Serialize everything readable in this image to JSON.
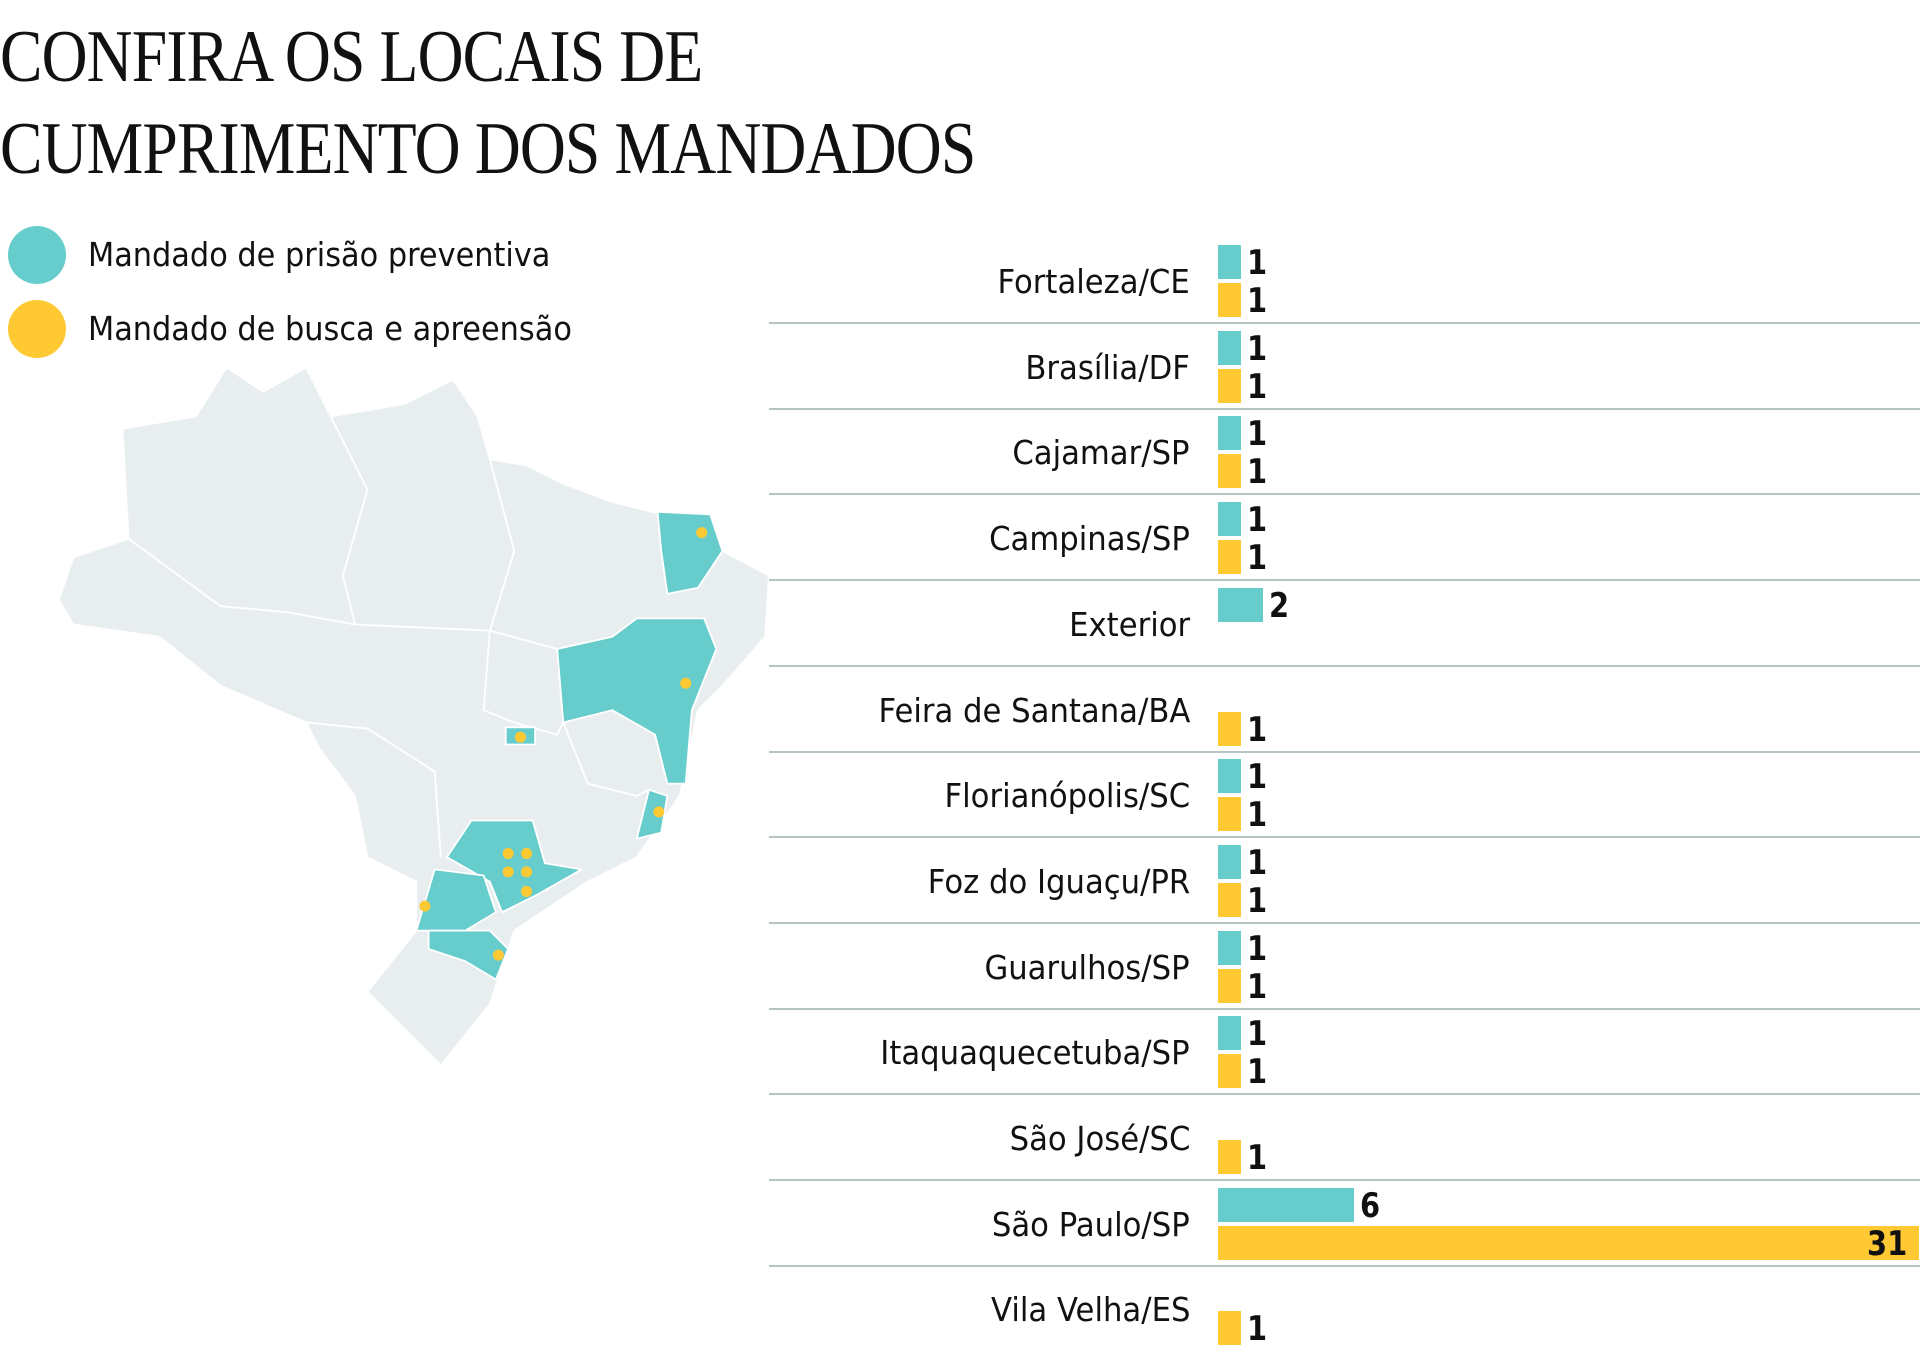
{
  "title_lines": [
    "CONFIRA OS LOCAIS DE",
    "CUMPRIMENTO DOS MANDADOS"
  ],
  "colors": {
    "prisao": "#66cccc",
    "busca": "#ffc933",
    "map_base": "#e8eef0",
    "map_border": "#ffffff"
  },
  "chart_data": {
    "type": "bar",
    "orientation": "horizontal",
    "title": "CONFIRA OS LOCAIS DE CUMPRIMENTO DOS MANDADOS",
    "legend": "top-left",
    "categories": [
      "Fortaleza/CE",
      "Brasília/DF",
      "Cajamar/SP",
      "Campinas/SP",
      "Exterior",
      "Feira de Santana/BA",
      "Florianópolis/SC",
      "Foz do Iguaçu/PR",
      "Guarulhos/SP",
      "Itaquaquecetuba/SP",
      "São José/SC",
      "São Paulo/SP",
      "Vila Velha/ES"
    ],
    "series": [
      {
        "name": "Mandado de prisão preventiva",
        "color": "#66cccc",
        "values": [
          1,
          1,
          1,
          1,
          2,
          null,
          1,
          1,
          1,
          1,
          null,
          6,
          null
        ]
      },
      {
        "name": "Mandado de busca e apreensão",
        "color": "#ffc933",
        "values": [
          1,
          1,
          1,
          1,
          null,
          1,
          1,
          1,
          1,
          1,
          1,
          31,
          1
        ]
      }
    ]
  },
  "map": {
    "highlighted_states": [
      "CE",
      "BA",
      "DF",
      "ES",
      "SP",
      "PR",
      "SC"
    ]
  }
}
